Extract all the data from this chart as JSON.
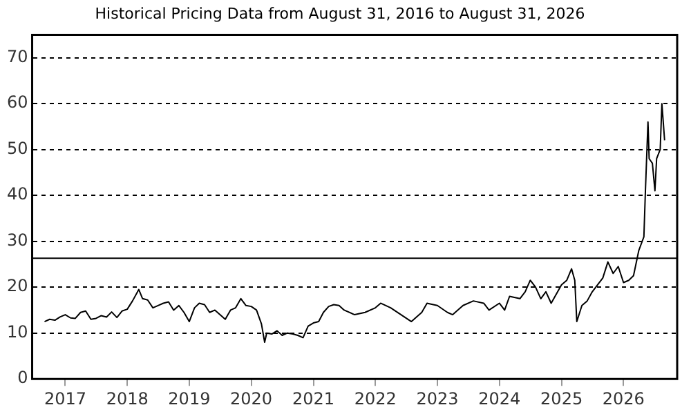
{
  "chart_data": {
    "type": "line",
    "title": "Historical Pricing Data from August 31, 2016 to August 31, 2026",
    "x": [
      "2016-09-01",
      "2016-10",
      "2016-11",
      "2016-12",
      "2017-01",
      "2017-02",
      "2017-03",
      "2017-04",
      "2017-05",
      "2017-06",
      "2017-07",
      "2017-08",
      "2017-09",
      "2017-10",
      "2017-11",
      "2017-12",
      "2018-01",
      "2018-02",
      "2018-03-10",
      "2018-04",
      "2018-05",
      "2018-06",
      "2018-07",
      "2018-08",
      "2018-09",
      "2018-10",
      "2018-11",
      "2018-12",
      "2019-01",
      "2019-02",
      "2019-03",
      "2019-04",
      "2019-05",
      "2019-06",
      "2019-07",
      "2019-08",
      "2019-09",
      "2019-10",
      "2019-11",
      "2019-12",
      "2020-01",
      "2020-02",
      "2020-03-01",
      "2020-03-20",
      "2020-04",
      "2020-05",
      "2020-06",
      "2020-07",
      "2020-08",
      "2020-09",
      "2020-10",
      "2020-11",
      "2020-12",
      "2021-01",
      "2021-02",
      "2021-03",
      "2021-04",
      "2021-05",
      "2021-06",
      "2021-07",
      "2021-09",
      "2021-11",
      "2022-01",
      "2022-02",
      "2022-04",
      "2022-06",
      "2022-08",
      "2022-10",
      "2022-11",
      "2023-01",
      "2023-03",
      "2023-04",
      "2023-06",
      "2023-08",
      "2023-10",
      "2023-11",
      "2024-01",
      "2024-02",
      "2024-03",
      "2024-05",
      "2024-06",
      "2024-07",
      "2024-08",
      "2024-09",
      "2024-10",
      "2024-11",
      "2025-01",
      "2025-02",
      "2025-03",
      "2025-03-20",
      "2025-04",
      "2025-05",
      "2025-06",
      "2025-07",
      "2025-08",
      "2025-09",
      "2025-10",
      "2025-11",
      "2025-12",
      "2026-01",
      "2026-02",
      "2026-03",
      "2026-04",
      "2026-05-01",
      "2026-05-10",
      "2026-05-25",
      "2026-06",
      "2026-06-20",
      "2026-07-05",
      "2026-07-15",
      "2026-08-05",
      "2026-08-15",
      "2026-08-31"
    ],
    "series": [
      {
        "color": "#000000",
        "values": [
          12.5,
          13,
          12.8,
          13.5,
          14,
          13.3,
          13.2,
          14.5,
          14.8,
          13,
          13.2,
          13.8,
          13.5,
          14.6,
          13.4,
          14.8,
          15.2,
          17,
          19.5,
          17.5,
          17.2,
          15.5,
          16,
          16.5,
          16.8,
          15,
          16,
          14.5,
          12.5,
          15.5,
          16.5,
          16.2,
          14.5,
          15,
          14,
          13,
          15,
          15.5,
          17.5,
          16,
          15.8,
          15,
          12,
          8,
          10,
          9.8,
          10.5,
          9.5,
          10,
          9.8,
          9.5,
          9,
          11.5,
          12.2,
          12.5,
          14.5,
          15.8,
          16.2,
          16,
          15,
          14,
          14.5,
          15.5,
          16.5,
          15.5,
          14,
          12.5,
          14.5,
          16.5,
          16,
          14.5,
          14,
          16,
          17,
          16.5,
          15,
          16.5,
          15,
          18,
          17.5,
          19,
          21.5,
          20,
          17.5,
          19,
          16.5,
          20.5,
          21.5,
          24,
          21.5,
          12.5,
          16,
          17,
          19,
          20.5,
          22,
          25.5,
          23,
          24.5,
          21,
          21.5,
          22.5,
          28,
          31,
          41,
          56,
          48,
          47,
          41,
          48,
          50,
          60,
          52
        ]
      }
    ],
    "xlim": [
      "2016-06-20",
      "2026-11-13"
    ],
    "xticks": [
      "2017",
      "2018",
      "2019",
      "2020",
      "2021",
      "2022",
      "2023",
      "2024",
      "2025",
      "2026"
    ],
    "ylim": [
      0,
      75
    ],
    "yticks": [
      0,
      10,
      20,
      30,
      40,
      50,
      60,
      70
    ],
    "ref_lines": [
      {
        "axis": "y",
        "value": 26.3,
        "color": "#000000"
      }
    ],
    "grid": "y",
    "marker": "none",
    "line_style": "solid"
  }
}
